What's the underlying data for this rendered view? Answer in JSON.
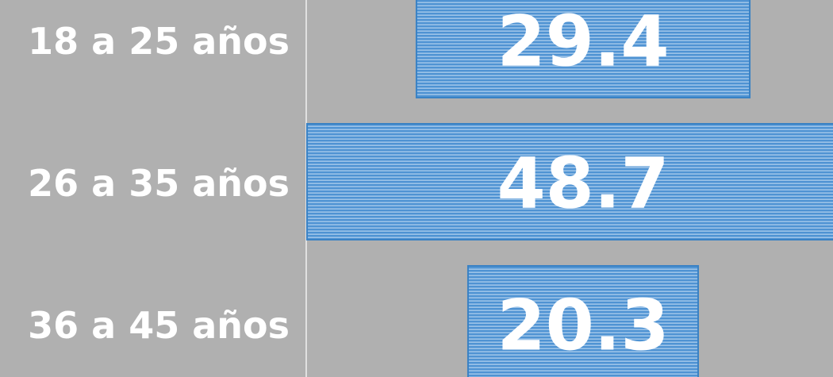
{
  "chart_data": {
    "type": "funnel",
    "categories": [
      "18 a 25 años",
      "26 a 35 años",
      "36 a 45 años"
    ],
    "values": [
      29.4,
      48.7,
      20.3
    ],
    "color": "#5b9bd5"
  }
}
